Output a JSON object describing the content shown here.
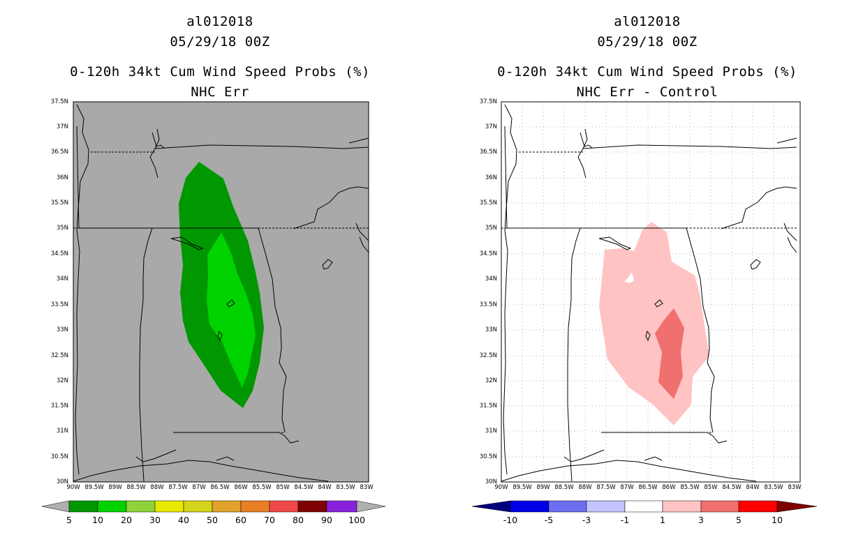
{
  "left_panel": {
    "storm_id": "al012018",
    "date": "05/29/18 00Z",
    "title": "0-120h 34kt Cum Wind Speed Probs (%)",
    "subtitle": "NHC Err",
    "background_color": "#a9a9a9",
    "colorbar": {
      "labels": [
        "5",
        "10",
        "20",
        "30",
        "40",
        "50",
        "60",
        "70",
        "80",
        "90",
        "100"
      ],
      "colors": [
        "#009700",
        "#00d300",
        "#8fd33a",
        "#e8e800",
        "#d4d41c",
        "#e0a22a",
        "#e97f24",
        "#f04848",
        "#7f0000",
        "#8820dc"
      ],
      "end_color": "#b0b0b0"
    }
  },
  "right_panel": {
    "storm_id": "al012018",
    "date": "05/29/18 00Z",
    "title": "0-120h 34kt Cum Wind Speed Probs (%)",
    "subtitle": "NHC Err - Control",
    "background_color": "#ffffff",
    "colorbar": {
      "labels": [
        "-10",
        "-5",
        "-3",
        "-1",
        "1",
        "3",
        "5",
        "10"
      ],
      "colors": [
        "#0000e6",
        "#6e6ef0",
        "#c3c3ff",
        "#ffffff",
        "#ffc3c3",
        "#f07070",
        "#ff0000"
      ],
      "low_end_color": "#00007f",
      "high_end_color": "#7f0000"
    }
  },
  "axes": {
    "y_ticks": [
      "37.5N",
      "37N",
      "36.5N",
      "36N",
      "35.5N",
      "35N",
      "34.5N",
      "34N",
      "33.5N",
      "33N",
      "32.5N",
      "32N",
      "31.5N",
      "31N",
      "30.5N",
      "30N"
    ],
    "x_ticks": [
      "90W",
      "89.5W",
      "89W",
      "88.5W",
      "88W",
      "87.5W",
      "87W",
      "86.5W",
      "86W",
      "85.5W",
      "85W",
      "84.5W",
      "84W",
      "83.5W",
      "83W"
    ]
  }
}
